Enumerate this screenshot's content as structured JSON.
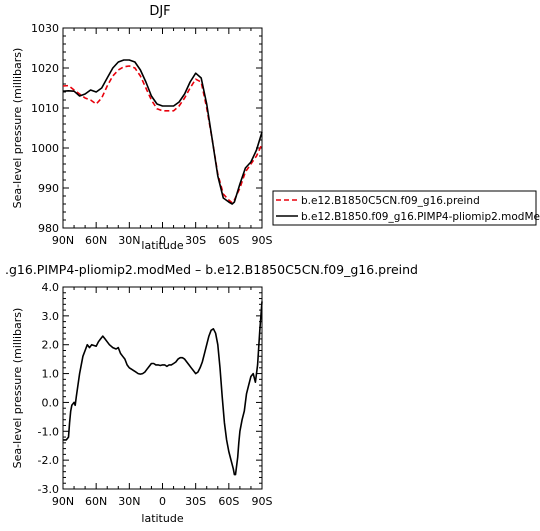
{
  "chart_data": [
    {
      "type": "line",
      "title": "DJF",
      "xlabel": "latitude",
      "ylabel": "Sea-level pressure (millibars)",
      "xlim": [
        90,
        -90
      ],
      "ylim": [
        980,
        1030
      ],
      "x_tick_values": [
        90,
        60,
        30,
        0,
        -30,
        -60,
        -90
      ],
      "x_tick_labels": [
        "90N",
        "60N",
        "30N",
        "0",
        "30S",
        "60S",
        "90S"
      ],
      "y_tick_values": [
        980,
        990,
        1000,
        1010,
        1020,
        1030
      ],
      "y_tick_labels": [
        "980",
        "990",
        "1000",
        "1010",
        "1020",
        "1030"
      ],
      "legend_position": "right",
      "series": [
        {
          "name": "b.e12.B1850C5CN.f09_g16.preind",
          "color": "#e8000b",
          "dash": "dashed",
          "x": [
            90,
            85,
            80,
            75,
            70,
            65,
            60,
            55,
            50,
            45,
            40,
            35,
            30,
            25,
            20,
            15,
            10,
            5,
            0,
            -5,
            -10,
            -15,
            -20,
            -25,
            -30,
            -35,
            -40,
            -45,
            -50,
            -55,
            -60,
            -63,
            -65,
            -70,
            -75,
            -80,
            -85,
            -90
          ],
          "y": [
            1015.5,
            1015.6,
            1014.5,
            1013.5,
            1012.5,
            1012,
            1011,
            1012.5,
            1015.5,
            1018,
            1019.5,
            1020.3,
            1020.5,
            1020,
            1018,
            1015,
            1012,
            1009.8,
            1009.3,
            1009.3,
            1009.3,
            1010.5,
            1012.5,
            1015,
            1017.2,
            1016.5,
            1010,
            1002,
            993.5,
            988.5,
            987,
            986.3,
            987,
            990,
            994,
            996,
            998,
            1001
          ]
        },
        {
          "name": "b.e12.B1850.f09_g16.PIMP4-pliomip2.modMed",
          "color": "#000000",
          "dash": "solid",
          "x": [
            90,
            85,
            80,
            75,
            70,
            65,
            60,
            55,
            50,
            45,
            40,
            35,
            30,
            25,
            20,
            15,
            10,
            5,
            0,
            -5,
            -10,
            -15,
            -20,
            -25,
            -30,
            -35,
            -40,
            -45,
            -50,
            -55,
            -60,
            -63,
            -65,
            -70,
            -75,
            -80,
            -85,
            -90
          ],
          "y": [
            1014.2,
            1014.3,
            1014.2,
            1013,
            1013.5,
            1014.5,
            1014,
            1015,
            1017.5,
            1020,
            1021.5,
            1022,
            1022,
            1021.5,
            1019.5,
            1016.5,
            1013,
            1011,
            1010.5,
            1010.5,
            1010.5,
            1011.5,
            1013.5,
            1016.5,
            1018.7,
            1017.5,
            1011,
            1002,
            993,
            987.5,
            986.5,
            986,
            986.5,
            991,
            995,
            996.5,
            999.5,
            1004
          ]
        }
      ]
    },
    {
      "type": "line",
      "title": ".g16.PIMP4-pliomip2.modMed – b.e12.B1850C5CN.f09_g16.preind",
      "xlabel": "latitude",
      "ylabel": "Sea-level pressure (millibars)",
      "xlim": [
        90,
        -90
      ],
      "ylim": [
        -3,
        4
      ],
      "x_tick_values": [
        90,
        60,
        30,
        0,
        -30,
        -60,
        -90
      ],
      "x_tick_labels": [
        "90N",
        "60N",
        "30N",
        "0",
        "30S",
        "60S",
        "90S"
      ],
      "y_tick_values": [
        -3,
        -2,
        -1,
        0,
        1,
        2,
        3,
        4
      ],
      "y_tick_labels": [
        "-3.0",
        "-2.0",
        "-1.0",
        "0.0",
        "1.0",
        "2.0",
        "3.0",
        "4.0"
      ],
      "series": [
        {
          "color": "#000000",
          "x": [
            90,
            87,
            85,
            84,
            83,
            82,
            80,
            79,
            78,
            75,
            72,
            70,
            68,
            66,
            64,
            60,
            58,
            56,
            54,
            52,
            50,
            48,
            45,
            42,
            40,
            38,
            36,
            34,
            32,
            30,
            28,
            26,
            24,
            22,
            20,
            18,
            16,
            14,
            12,
            10,
            8,
            6,
            4,
            2,
            0,
            -2,
            -4,
            -6,
            -8,
            -10,
            -12,
            -14,
            -16,
            -18,
            -20,
            -22,
            -24,
            -26,
            -28,
            -30,
            -32,
            -34,
            -36,
            -38,
            -40,
            -42,
            -44,
            -46,
            -48,
            -50,
            -52,
            -54,
            -56,
            -58,
            -60,
            -62,
            -64,
            -65,
            -66,
            -68,
            -69,
            -70,
            -72,
            -74,
            -75,
            -76,
            -78,
            -80,
            -82,
            -84,
            -86,
            -88,
            -90
          ],
          "y": [
            -1.3,
            -1.3,
            -1.2,
            -0.7,
            -0.3,
            -0.1,
            0,
            -0.1,
            0.2,
            1,
            1.6,
            1.8,
            2,
            1.9,
            2,
            1.95,
            2.1,
            2.2,
            2.3,
            2.2,
            2.1,
            2.0,
            1.9,
            1.85,
            1.9,
            1.7,
            1.6,
            1.5,
            1.3,
            1.2,
            1.15,
            1.1,
            1.05,
            1.0,
            0.98,
            1.0,
            1.05,
            1.15,
            1.25,
            1.35,
            1.35,
            1.3,
            1.3,
            1.28,
            1.3,
            1.3,
            1.25,
            1.3,
            1.3,
            1.35,
            1.4,
            1.5,
            1.55,
            1.55,
            1.5,
            1.4,
            1.3,
            1.2,
            1.1,
            1.0,
            1.05,
            1.2,
            1.4,
            1.7,
            2.0,
            2.3,
            2.5,
            2.55,
            2.4,
            2.0,
            1.2,
            0.2,
            -0.7,
            -1.3,
            -1.7,
            -2.0,
            -2.3,
            -2.5,
            -2.5,
            -1.9,
            -1.4,
            -1.0,
            -0.6,
            -0.3,
            0.0,
            0.3,
            0.6,
            0.9,
            1.0,
            0.7,
            1.3,
            2.5,
            3.5
          ]
        }
      ]
    }
  ]
}
